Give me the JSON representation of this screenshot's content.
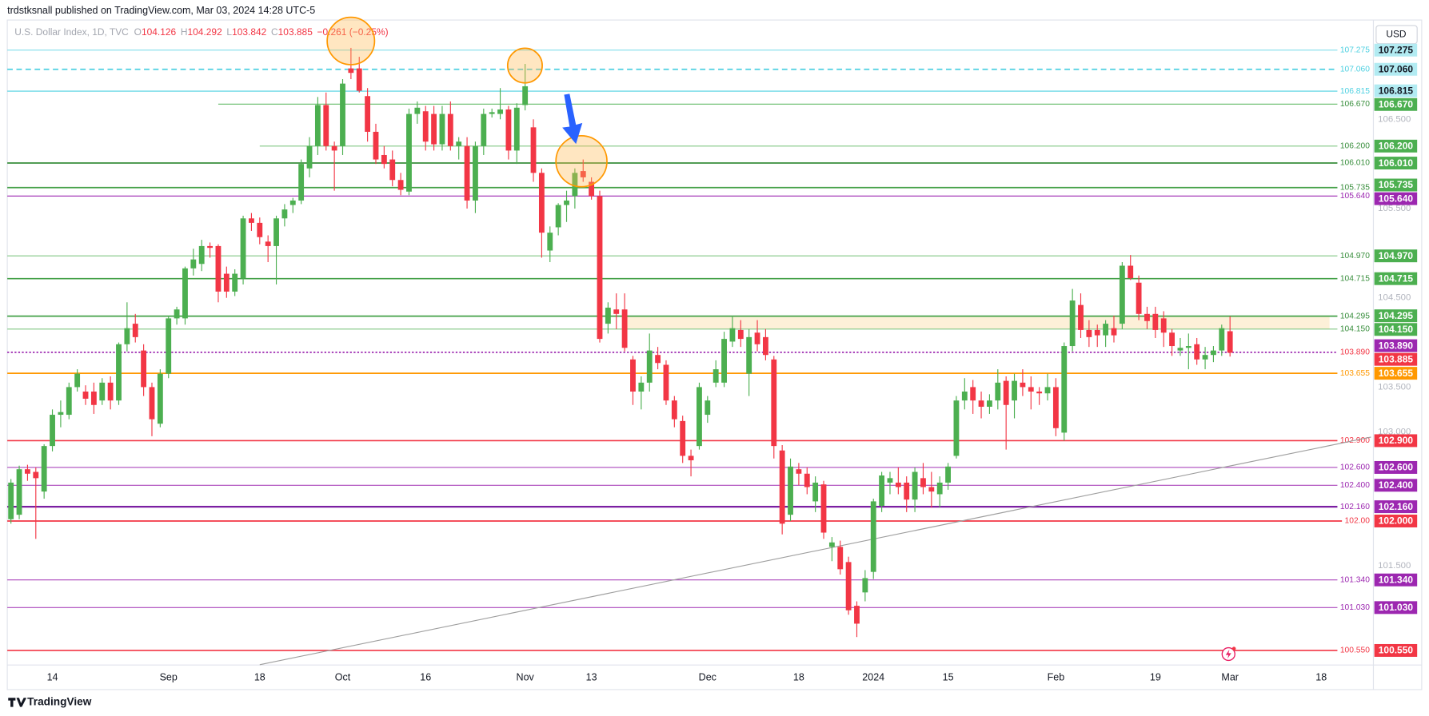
{
  "header": {
    "publisher_line": "trdstksnall published on TradingView.com, Mar 03, 2024 14:28 UTC-5"
  },
  "legend": {
    "symbol": "U.S. Dollar Index, 1D, TVC",
    "open_label": "O",
    "open": "104.126",
    "high_label": "H",
    "high": "104.292",
    "low_label": "L",
    "low": "103.842",
    "close_label": "C",
    "close": "103.885",
    "change": "−0.261 (−0.25%)"
  },
  "currency": "USD",
  "brand": "TradingView",
  "chart_data": {
    "type": "candlestick",
    "up_color": "#4caf50",
    "down_color": "#f23645",
    "grid": false,
    "xlim": [
      -0.44,
      164.29
    ],
    "ylim": [
      100.387,
      107.612
    ],
    "xticks": [
      {
        "value": 5,
        "label": "14"
      },
      {
        "value": 19,
        "label": "Sep"
      },
      {
        "value": 30,
        "label": "18"
      },
      {
        "value": 40,
        "label": "Oct"
      },
      {
        "value": 50,
        "label": "16"
      },
      {
        "value": 62,
        "label": "Nov"
      },
      {
        "value": 70,
        "label": "13"
      },
      {
        "value": 84,
        "label": "Dec"
      },
      {
        "value": 95,
        "label": "18"
      },
      {
        "value": 104,
        "label": "2024"
      },
      {
        "value": 113,
        "label": "15"
      },
      {
        "value": 126,
        "label": "Feb"
      },
      {
        "value": 138,
        "label": "19"
      },
      {
        "value": 147,
        "label": "Mar"
      },
      {
        "value": 158,
        "label": "18"
      }
    ],
    "yticks": [
      {
        "value": 106.5,
        "label": "106.500"
      },
      {
        "value": 105.5,
        "label": "105.500"
      },
      {
        "value": 104.5,
        "label": "104.500"
      },
      {
        "value": 103.5,
        "label": "103.500"
      },
      {
        "value": 103,
        "label": "103.000"
      },
      {
        "value": 101.5,
        "label": "101.500"
      }
    ],
    "candles": [
      [
        102.02,
        102.47,
        101.97,
        102.43
      ],
      [
        102.07,
        102.62,
        102.02,
        102.58
      ],
      [
        102.58,
        102.63,
        102.45,
        102.53
      ],
      [
        102.55,
        102.6,
        101.8,
        102.48
      ],
      [
        102.33,
        102.86,
        102.25,
        102.84
      ],
      [
        102.84,
        103.25,
        102.78,
        103.19
      ],
      [
        103.19,
        103.35,
        103.05,
        103.22
      ],
      [
        103.19,
        103.55,
        103.14,
        103.5
      ],
      [
        103.5,
        103.7,
        103.45,
        103.65
      ],
      [
        103.45,
        103.52,
        103.3,
        103.37
      ],
      [
        103.45,
        103.55,
        103.2,
        103.3
      ],
      [
        103.35,
        103.6,
        103.3,
        103.55
      ],
      [
        103.55,
        103.62,
        103.25,
        103.35
      ],
      [
        103.35,
        104,
        103.3,
        103.98
      ],
      [
        103.98,
        104.45,
        103.9,
        104.16
      ],
      [
        104.21,
        104.32,
        104,
        104.06
      ],
      [
        103.91,
        103.98,
        103.4,
        103.5
      ],
      [
        103.5,
        103.55,
        102.95,
        103.14
      ],
      [
        103.09,
        103.7,
        103.05,
        103.65
      ],
      [
        103.65,
        104.3,
        103.6,
        104.27
      ],
      [
        104.27,
        104.4,
        104.2,
        104.37
      ],
      [
        104.27,
        104.85,
        104.2,
        104.83
      ],
      [
        104.83,
        105.05,
        104.75,
        104.93
      ],
      [
        104.88,
        105.15,
        104.8,
        105.08
      ],
      [
        105.08,
        105.12,
        104.95,
        105.06
      ],
      [
        105.08,
        105.1,
        104.45,
        104.57
      ],
      [
        104.77,
        104.85,
        104.5,
        104.57
      ],
      [
        104.57,
        104.82,
        104.52,
        104.77
      ],
      [
        104.72,
        105.42,
        104.65,
        105.39
      ],
      [
        105.39,
        105.45,
        105.25,
        105.34
      ],
      [
        105.34,
        105.4,
        105.1,
        105.18
      ],
      [
        105.13,
        105.2,
        104.9,
        105.08
      ],
      [
        105.08,
        105.42,
        104.65,
        105.39
      ],
      [
        105.39,
        105.55,
        105.3,
        105.49
      ],
      [
        105.54,
        105.62,
        105.45,
        105.59
      ],
      [
        105.59,
        106.05,
        105.55,
        106
      ],
      [
        105.95,
        106.3,
        105.85,
        106.2
      ],
      [
        106.2,
        106.75,
        106.1,
        106.66
      ],
      [
        106.66,
        106.8,
        106.15,
        106.2
      ],
      [
        106.2,
        106.25,
        105.7,
        106.15
      ],
      [
        106.2,
        106.95,
        106.1,
        106.9
      ],
      [
        107.07,
        107.3,
        106.95,
        107.02
      ],
      [
        107.07,
        107.2,
        106.8,
        106.82
      ],
      [
        106.76,
        106.85,
        106.25,
        106.36
      ],
      [
        106.36,
        106.45,
        106,
        106.05
      ],
      [
        106.1,
        106.2,
        105.95,
        106
      ],
      [
        106.05,
        106.15,
        105.75,
        105.82
      ],
      [
        105.82,
        105.9,
        105.65,
        105.71
      ],
      [
        105.69,
        106.62,
        105.65,
        106.56
      ],
      [
        106.56,
        106.7,
        106.45,
        106.63
      ],
      [
        106.59,
        106.65,
        106.15,
        106.25
      ],
      [
        106.56,
        106.65,
        106.15,
        106.22
      ],
      [
        106.22,
        106.65,
        106.15,
        106.56
      ],
      [
        106.56,
        106.7,
        106.15,
        106.2
      ],
      [
        106.2,
        106.3,
        106.05,
        106.25
      ],
      [
        106.2,
        106.3,
        105.5,
        105.59
      ],
      [
        105.59,
        106.25,
        105.45,
        106.2
      ],
      [
        106.2,
        106.62,
        106.1,
        106.56
      ],
      [
        106.56,
        106.62,
        106.52,
        106.58
      ],
      [
        106.56,
        106.85,
        106.5,
        106.61
      ],
      [
        106.61,
        106.65,
        106.05,
        106.15
      ],
      [
        106.15,
        106.68,
        106,
        106.63
      ],
      [
        106.66,
        107.12,
        106.6,
        106.87
      ],
      [
        106.41,
        106.5,
        105.8,
        105.9
      ],
      [
        105.9,
        105.95,
        104.95,
        105.23
      ],
      [
        105.03,
        105.3,
        104.9,
        105.23
      ],
      [
        105.29,
        105.56,
        105.2,
        105.54
      ],
      [
        105.54,
        105.7,
        105.35,
        105.59
      ],
      [
        105.64,
        105.95,
        105.5,
        105.9
      ],
      [
        105.92,
        106.05,
        105.8,
        105.85
      ],
      [
        105.8,
        105.85,
        105.6,
        105.64
      ],
      [
        105.64,
        105.7,
        104,
        104.04
      ],
      [
        104.21,
        104.45,
        104.1,
        104.39
      ],
      [
        104.37,
        104.55,
        104.15,
        104.32
      ],
      [
        104.37,
        104.55,
        103.9,
        103.94
      ],
      [
        103.81,
        103.85,
        103.3,
        103.45
      ],
      [
        103.45,
        103.62,
        103.25,
        103.55
      ],
      [
        103.55,
        104.1,
        103.45,
        103.91
      ],
      [
        103.86,
        103.95,
        103.7,
        103.77
      ],
      [
        103.75,
        103.8,
        103.3,
        103.35
      ],
      [
        103.35,
        103.4,
        103.05,
        103.14
      ],
      [
        103.12,
        103.18,
        102.65,
        102.73
      ],
      [
        102.73,
        102.8,
        102.5,
        102.68
      ],
      [
        102.84,
        103.55,
        102.8,
        103.5
      ],
      [
        103.19,
        103.4,
        103.1,
        103.35
      ],
      [
        103.55,
        103.8,
        103.5,
        103.7
      ],
      [
        103.55,
        104.12,
        103.5,
        104.04
      ],
      [
        104.01,
        104.3,
        103.95,
        104.16
      ],
      [
        104.14,
        104.25,
        103.95,
        104.04
      ],
      [
        103.65,
        104.15,
        103.4,
        104.06
      ],
      [
        104.11,
        104.25,
        103.9,
        103.98
      ],
      [
        104.06,
        104.15,
        103.8,
        103.86
      ],
      [
        103.81,
        103.85,
        102.7,
        102.84
      ],
      [
        102.79,
        102.85,
        101.85,
        101.97
      ],
      [
        102.07,
        102.7,
        102,
        102.61
      ],
      [
        102.58,
        102.65,
        102.4,
        102.53
      ],
      [
        102.53,
        102.6,
        102.3,
        102.38
      ],
      [
        102.22,
        102.5,
        102.1,
        102.43
      ],
      [
        102.41,
        102.45,
        101.8,
        101.87
      ],
      [
        101.71,
        101.82,
        101.55,
        101.76
      ],
      [
        101.71,
        101.78,
        101.4,
        101.46
      ],
      [
        101.54,
        101.6,
        100.95,
        101
      ],
      [
        101.05,
        101.1,
        100.7,
        100.85
      ],
      [
        101.2,
        101.45,
        101.1,
        101.36
      ],
      [
        101.43,
        102.25,
        101.35,
        102.22
      ],
      [
        102.17,
        102.55,
        102.1,
        102.51
      ],
      [
        102.43,
        102.55,
        102.3,
        102.48
      ],
      [
        102.43,
        102.6,
        102.3,
        102.38
      ],
      [
        102.43,
        102.5,
        102.1,
        102.24
      ],
      [
        102.24,
        102.6,
        102.1,
        102.55
      ],
      [
        102.48,
        102.65,
        102.3,
        102.38
      ],
      [
        102.38,
        102.55,
        102.15,
        102.33
      ],
      [
        102.3,
        102.5,
        102.15,
        102.43
      ],
      [
        102.43,
        102.65,
        102.35,
        102.61
      ],
      [
        102.73,
        103.4,
        102.7,
        103.35
      ],
      [
        103.35,
        103.6,
        103.25,
        103.45
      ],
      [
        103.5,
        103.58,
        103.2,
        103.35
      ],
      [
        103.35,
        103.45,
        103.15,
        103.28
      ],
      [
        103.28,
        103.42,
        103.2,
        103.35
      ],
      [
        103.35,
        103.7,
        103.25,
        103.55
      ],
      [
        103.57,
        103.62,
        102.8,
        103.3
      ],
      [
        103.35,
        103.65,
        103.15,
        103.57
      ],
      [
        103.55,
        103.7,
        103.4,
        103.5
      ],
      [
        103.5,
        103.62,
        103.25,
        103.45
      ],
      [
        103.45,
        103.5,
        103.3,
        103.43
      ],
      [
        103.43,
        103.65,
        103.35,
        103.5
      ],
      [
        103.5,
        103.6,
        102.95,
        103.04
      ],
      [
        102.99,
        104,
        102.9,
        103.96
      ],
      [
        103.96,
        104.6,
        103.9,
        104.47
      ],
      [
        104.42,
        104.55,
        104.05,
        104.14
      ],
      [
        104.14,
        104.25,
        103.95,
        104.06
      ],
      [
        104.14,
        104.2,
        103.95,
        104.08
      ],
      [
        104.08,
        104.25,
        103.95,
        104.21
      ],
      [
        104.16,
        104.3,
        104,
        104.08
      ],
      [
        104.21,
        104.9,
        104.15,
        104.86
      ],
      [
        104.86,
        104.98,
        104.7,
        104.72
      ],
      [
        104.67,
        104.75,
        104.25,
        104.32
      ],
      [
        104.32,
        104.4,
        104.15,
        104.24
      ],
      [
        104.32,
        104.4,
        104.05,
        104.14
      ],
      [
        104.27,
        104.35,
        103.95,
        104.11
      ],
      [
        104.11,
        104.15,
        103.85,
        103.96
      ],
      [
        103.91,
        104.05,
        103.85,
        103.94
      ],
      [
        103.94,
        104.1,
        103.7,
        103.96
      ],
      [
        103.98,
        104.05,
        103.75,
        103.81
      ],
      [
        103.81,
        103.95,
        103.7,
        103.86
      ],
      [
        103.86,
        103.96,
        103.78,
        103.91
      ],
      [
        103.91,
        104.2,
        103.85,
        104.16
      ],
      [
        104.126,
        104.292,
        103.842,
        103.885
      ]
    ],
    "zone": {
      "from": 104.15,
      "to": 104.295,
      "x_start": 74,
      "x_end": 159,
      "color": "#fdf0d8"
    },
    "trendline": {
      "x": [
        30,
        164
      ],
      "y": [
        100.39,
        102.94
      ],
      "color": "#9e9e9e"
    },
    "levels": [
      {
        "value": 107.275,
        "label": "107.275",
        "color": "#80deea",
        "tag_color": "#b2ebf2",
        "text_color": "#131722",
        "label_color": "#4dd0e1",
        "style": "solid",
        "width": 1
      },
      {
        "value": 107.06,
        "label": "107.060",
        "color": "#4dd0e1",
        "tag_color": "#b2ebf2",
        "text_color": "#131722",
        "label_color": "#4dd0e1",
        "style": "dashed",
        "width": 1.5
      },
      {
        "value": 106.815,
        "label": "106.815",
        "color": "#4dd0e1",
        "tag_color": "#b2ebf2",
        "text_color": "#131722",
        "label_color": "#4dd0e1",
        "style": "solid",
        "width": 1
      },
      {
        "value": 106.67,
        "label": "106.670",
        "color": "#66bb6a",
        "tag_color": "#4caf50",
        "text_color": "#ffffff",
        "label_color": "#388e3c",
        "style": "solid",
        "width": 1,
        "x_start": 25
      },
      {
        "value": 106.2,
        "label": "106.200",
        "color": "#81c784",
        "tag_color": "#4caf50",
        "text_color": "#ffffff",
        "label_color": "#388e3c",
        "style": "solid",
        "width": 1,
        "x_start": 30
      },
      {
        "value": 106.01,
        "label": "106.010",
        "color": "#388e3c",
        "tag_color": "#4caf50",
        "text_color": "#ffffff",
        "label_color": "#388e3c",
        "style": "solid",
        "width": 1.5
      },
      {
        "value": 105.735,
        "label": "105.735",
        "color": "#43a047",
        "tag_color": "#4caf50",
        "text_color": "#ffffff",
        "label_color": "#388e3c",
        "style": "solid",
        "width": 1.5
      },
      {
        "value": 105.64,
        "label": "105.640",
        "color": "#9c27b0",
        "tag_color": "#9c27b0",
        "text_color": "#ffffff",
        "label_color": "#9c27b0",
        "style": "solid",
        "width": 1
      },
      {
        "value": 104.97,
        "label": "104.970",
        "color": "#81c784",
        "tag_color": "#4caf50",
        "text_color": "#ffffff",
        "label_color": "#388e3c",
        "style": "solid",
        "width": 1
      },
      {
        "value": 104.715,
        "label": "104.715",
        "color": "#43a047",
        "tag_color": "#4caf50",
        "text_color": "#ffffff",
        "label_color": "#388e3c",
        "style": "solid",
        "width": 1.5
      },
      {
        "value": 104.295,
        "label": "104.295",
        "color": "#43a047",
        "tag_color": "#4caf50",
        "text_color": "#ffffff",
        "label_color": "#388e3c",
        "style": "solid",
        "width": 1.5
      },
      {
        "value": 104.15,
        "label": "104.150",
        "color": "#81c784",
        "tag_color": "#4caf50",
        "text_color": "#ffffff",
        "label_color": "#388e3c",
        "style": "solid",
        "width": 1
      },
      {
        "value": 103.89,
        "label": "103.890",
        "color": "#9c27b0",
        "tag_color": "#9c27b0",
        "text_color": "#ffffff",
        "label_color": "#f23645",
        "style": "dotted",
        "width": 1.5
      },
      {
        "value": 103.655,
        "label": "103.655",
        "color": "#ff9800",
        "tag_color": "#ff9800",
        "text_color": "#ffffff",
        "label_color": "#ff9800",
        "style": "solid",
        "width": 1.5
      },
      {
        "value": 102.9,
        "label": "102.900",
        "color": "#f23645",
        "tag_color": "#f23645",
        "text_color": "#ffffff",
        "label_color": "#f23645",
        "style": "solid",
        "width": 1.5
      },
      {
        "value": 102.6,
        "label": "102.600",
        "color": "#ab47bc",
        "tag_color": "#9c27b0",
        "text_color": "#ffffff",
        "label_color": "#9c27b0",
        "style": "solid",
        "width": 1
      },
      {
        "value": 102.4,
        "label": "102.400",
        "color": "#ab47bc",
        "tag_color": "#9c27b0",
        "text_color": "#ffffff",
        "label_color": "#9c27b0",
        "style": "solid",
        "width": 1
      },
      {
        "value": 102.16,
        "label": "102.160",
        "color": "#7b1fa2",
        "tag_color": "#9c27b0",
        "text_color": "#ffffff",
        "label_color": "#9c27b0",
        "style": "solid",
        "width": 2
      },
      {
        "value": 102,
        "label": "102.00",
        "tag_label": "102.000",
        "color": "#f23645",
        "tag_color": "#f23645",
        "text_color": "#ffffff",
        "label_color": "#f23645",
        "style": "solid",
        "width": 1.5
      },
      {
        "value": 101.34,
        "label": "101.340",
        "color": "#ab47bc",
        "tag_color": "#9c27b0",
        "text_color": "#ffffff",
        "label_color": "#9c27b0",
        "style": "solid",
        "width": 1
      },
      {
        "value": 101.03,
        "label": "101.030",
        "color": "#ab47bc",
        "tag_color": "#9c27b0",
        "text_color": "#ffffff",
        "label_color": "#9c27b0",
        "style": "solid",
        "width": 1
      },
      {
        "value": 100.55,
        "label": "100.550",
        "color": "#f23645",
        "tag_color": "#f23645",
        "text_color": "#ffffff",
        "label_color": "#f23645",
        "style": "solid",
        "width": 1.5
      }
    ],
    "last_price": {
      "value": 103.885,
      "label": "103.885",
      "color": "#f23645"
    }
  }
}
